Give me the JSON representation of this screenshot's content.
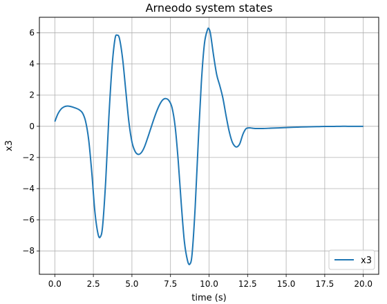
{
  "chart_data": {
    "type": "line",
    "title": "Arneodo system states",
    "xlabel": "time (s)",
    "ylabel": "x3",
    "xlim": [
      -1.0,
      21.0
    ],
    "ylim": [
      -9.5,
      7.0
    ],
    "xticks": [
      0.0,
      2.5,
      5.0,
      7.5,
      10.0,
      12.5,
      15.0,
      17.5,
      20.0
    ],
    "xtick_labels": [
      "0.0",
      "2.5",
      "5.0",
      "7.5",
      "10.0",
      "12.5",
      "15.0",
      "17.5",
      "20.0"
    ],
    "yticks": [
      -8,
      -6,
      -4,
      -2,
      0,
      2,
      4,
      6
    ],
    "ytick_labels": [
      "−8",
      "−6",
      "−4",
      "−2",
      "0",
      "2",
      "4",
      "6"
    ],
    "grid": true,
    "legend_position": "lower-right",
    "series": [
      {
        "name": "x3",
        "color": "#1f77b4",
        "x": [
          0.0,
          0.2,
          0.4,
          0.6,
          0.8,
          1.0,
          1.2,
          1.4,
          1.6,
          1.8,
          2.0,
          2.2,
          2.4,
          2.6,
          2.8,
          2.95,
          3.1,
          3.3,
          3.5,
          3.7,
          3.9,
          4.05,
          4.2,
          4.4,
          4.6,
          4.8,
          5.0,
          5.2,
          5.4,
          5.6,
          5.8,
          6.0,
          6.2,
          6.4,
          6.6,
          6.8,
          7.0,
          7.2,
          7.4,
          7.6,
          7.8,
          8.0,
          8.2,
          8.4,
          8.6,
          8.75,
          8.9,
          9.1,
          9.3,
          9.5,
          9.7,
          9.9,
          10.0,
          10.1,
          10.3,
          10.5,
          10.7,
          10.9,
          11.1,
          11.3,
          11.5,
          11.7,
          11.85,
          12.0,
          12.2,
          12.4,
          12.6,
          12.8,
          13.0,
          13.5,
          14.0,
          14.5,
          15.0,
          15.5,
          16.0,
          16.5,
          17.0,
          17.5,
          18.0,
          18.5,
          19.0,
          19.5,
          20.0
        ],
        "y": [
          0.3,
          0.8,
          1.1,
          1.25,
          1.3,
          1.28,
          1.22,
          1.15,
          1.05,
          0.85,
          0.3,
          -0.9,
          -3.0,
          -5.5,
          -6.9,
          -7.1,
          -6.4,
          -3.5,
          0.5,
          3.7,
          5.6,
          5.85,
          5.6,
          4.3,
          2.3,
          0.3,
          -1.0,
          -1.6,
          -1.8,
          -1.7,
          -1.35,
          -0.8,
          -0.2,
          0.4,
          0.95,
          1.4,
          1.7,
          1.78,
          1.65,
          1.2,
          0.0,
          -2.2,
          -5.0,
          -7.4,
          -8.6,
          -8.85,
          -8.2,
          -5.2,
          -1.0,
          2.8,
          5.3,
          6.2,
          6.25,
          5.9,
          4.5,
          3.3,
          2.6,
          1.8,
          0.7,
          -0.3,
          -1.0,
          -1.3,
          -1.3,
          -1.1,
          -0.5,
          -0.15,
          -0.1,
          -0.12,
          -0.14,
          -0.14,
          -0.12,
          -0.1,
          -0.08,
          -0.06,
          -0.04,
          -0.03,
          -0.02,
          -0.01,
          -0.01,
          0.0,
          0.0,
          0.0,
          0.0
        ]
      }
    ]
  }
}
